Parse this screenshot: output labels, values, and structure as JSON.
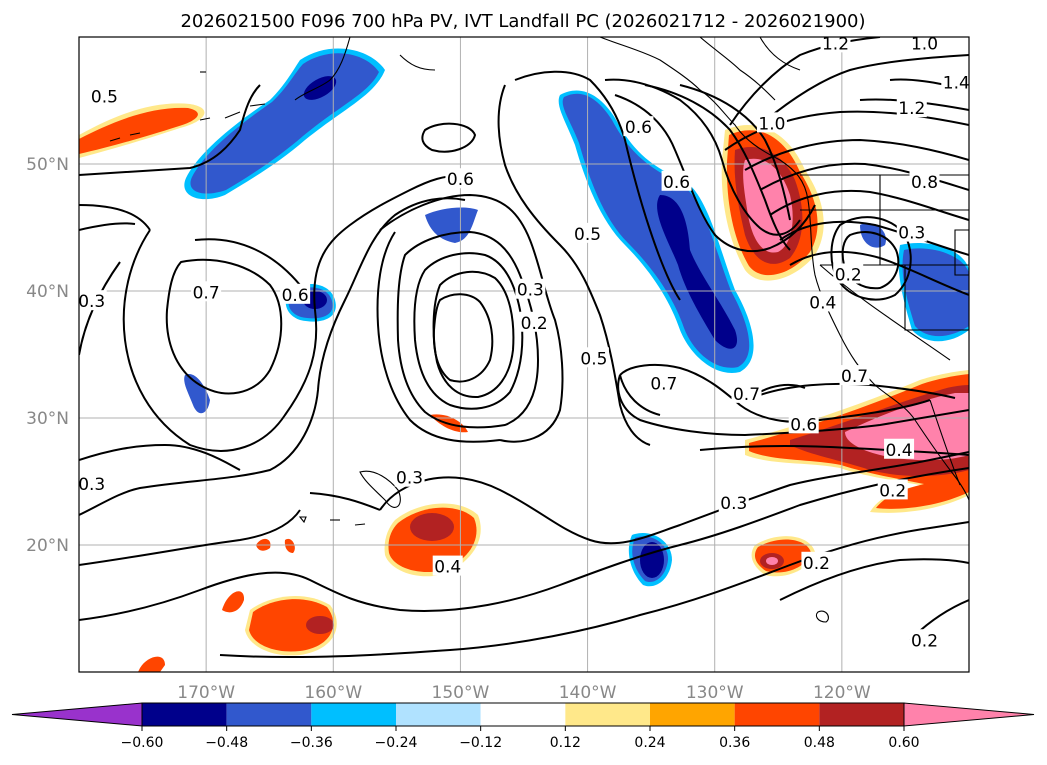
{
  "chart_data": {
    "type": "heatmap",
    "title": "2026021500 F096 700 hPa PV, IVT Landfall PC (2026021712 - 2026021900)",
    "x_ticks": [
      "170°W",
      "160°W",
      "150°W",
      "140°W",
      "130°W",
      "120°W"
    ],
    "x_tick_values": [
      -170,
      -160,
      -150,
      -140,
      -130,
      -120
    ],
    "y_ticks": [
      "50°N",
      "40°N",
      "30°N",
      "20°N"
    ],
    "y_tick_values": [
      50,
      40,
      30,
      20
    ],
    "xlim": [
      -180,
      -110
    ],
    "ylim": [
      10,
      60
    ],
    "grid": true,
    "colorbar": {
      "levels": [
        -0.6,
        -0.48,
        -0.36,
        -0.24,
        -0.12,
        0.12,
        0.24,
        0.36,
        0.48,
        0.6
      ],
      "tick_labels": [
        "−0.60",
        "−0.48",
        "−0.36",
        "−0.24",
        "−0.12",
        "0.12",
        "0.24",
        "0.36",
        "0.48",
        "0.60"
      ],
      "colors": [
        "#9932cc",
        "#00008b",
        "#3158cd",
        "#00bfff",
        "#b0e2ff",
        "#ffffff",
        "#ffe88a",
        "#ffa500",
        "#ff4500",
        "#b22222",
        "#ff82ab"
      ],
      "extend": "both"
    },
    "shaded_regions": [
      {
        "name": "alaska-gulf-negative",
        "sign": "negative",
        "peak": -0.48,
        "lon": -160,
        "lat": 52
      },
      {
        "name": "bering-positive",
        "sign": "positive",
        "peak": 0.36,
        "lon": -175,
        "lat": 52
      },
      {
        "name": "northeast-pacific-negative-band",
        "sign": "negative",
        "peak": -0.6,
        "lon": -133,
        "lat": 43
      },
      {
        "name": "pacific-northwest-positive",
        "sign": "positive",
        "peak": 0.6,
        "lon": -125,
        "lat": 46
      },
      {
        "name": "california-coast-negative",
        "sign": "negative",
        "peak": -0.36,
        "lon": -114,
        "lat": 41
      },
      {
        "name": "southern-california-positive",
        "sign": "positive",
        "peak": 0.6,
        "lon": -117,
        "lat": 30
      },
      {
        "name": "hawaii-positive",
        "sign": "positive",
        "peak": 0.48,
        "lon": -153,
        "lat": 21
      },
      {
        "name": "subtropical-negative",
        "sign": "negative",
        "peak": -0.6,
        "lon": -135,
        "lat": 19
      },
      {
        "name": "subtropical-positive",
        "sign": "positive",
        "peak": 0.6,
        "lon": -125,
        "lat": 19
      },
      {
        "name": "southwest-positive",
        "sign": "positive",
        "peak": 0.48,
        "lon": -163,
        "lat": 14
      },
      {
        "name": "west-negative",
        "sign": "negative",
        "peak": -0.6,
        "lon": -160,
        "lat": 39
      }
    ],
    "contour_labels": [
      {
        "text": "0.6",
        "lon": -150,
        "lat": 48.8
      },
      {
        "text": "0.5",
        "lon": -178,
        "lat": 55.3
      },
      {
        "text": "0.7",
        "lon": -170,
        "lat": 39.9
      },
      {
        "text": "0.6",
        "lon": -163,
        "lat": 39.7
      },
      {
        "text": "0.3",
        "lon": -179,
        "lat": 39.2
      },
      {
        "text": "0.3",
        "lon": -144.5,
        "lat": 40.1
      },
      {
        "text": "0.2",
        "lon": -144.2,
        "lat": 37.5
      },
      {
        "text": "0.5",
        "lon": -140,
        "lat": 44.5
      },
      {
        "text": "0.5",
        "lon": -139.5,
        "lat": 34.7
      },
      {
        "text": "0.6",
        "lon": -136,
        "lat": 52.9
      },
      {
        "text": "0.6",
        "lon": -133,
        "lat": 48.6
      },
      {
        "text": "1.0",
        "lon": -125.5,
        "lat": 53.2
      },
      {
        "text": "1.2",
        "lon": -120.5,
        "lat": 59.5
      },
      {
        "text": "1.0",
        "lon": -113.5,
        "lat": 59.5
      },
      {
        "text": "1.4",
        "lon": -111,
        "lat": 56.4
      },
      {
        "text": "1.2",
        "lon": -114.5,
        "lat": 54.4
      },
      {
        "text": "0.8",
        "lon": -113.5,
        "lat": 48.6
      },
      {
        "text": "0.3",
        "lon": -114.5,
        "lat": 44.6
      },
      {
        "text": "0.2",
        "lon": -119.5,
        "lat": 41.3
      },
      {
        "text": "0.4",
        "lon": -121.5,
        "lat": 39.1
      },
      {
        "text": "0.7",
        "lon": -134,
        "lat": 32.7
      },
      {
        "text": "0.7",
        "lon": -127.5,
        "lat": 31.9
      },
      {
        "text": "0.7",
        "lon": -119,
        "lat": 33.3
      },
      {
        "text": "0.6",
        "lon": -123,
        "lat": 29.5
      },
      {
        "text": "0.4",
        "lon": -115.5,
        "lat": 27.5
      },
      {
        "text": "0.2",
        "lon": -116,
        "lat": 24.3
      },
      {
        "text": "0.3",
        "lon": -179,
        "lat": 24.8
      },
      {
        "text": "0.3",
        "lon": -154,
        "lat": 25.3
      },
      {
        "text": "0.3",
        "lon": -128.5,
        "lat": 23.3
      },
      {
        "text": "0.4",
        "lon": -151,
        "lat": 18.3
      },
      {
        "text": "0.2",
        "lon": -122,
        "lat": 18.6
      },
      {
        "text": "0.2",
        "lon": -113.5,
        "lat": 12.5
      }
    ]
  }
}
